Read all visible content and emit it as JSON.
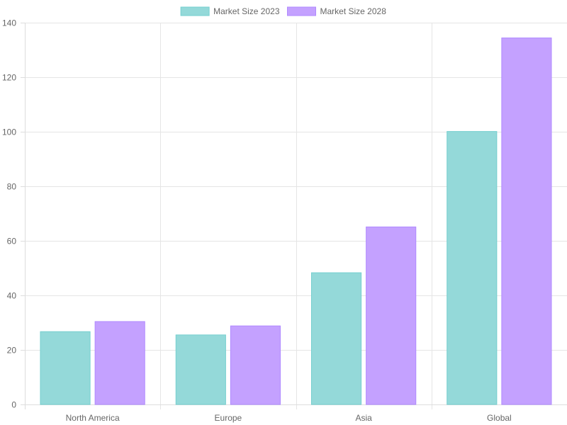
{
  "chart_data": {
    "type": "bar",
    "categories": [
      "North America",
      "Europe",
      "Asia",
      "Global"
    ],
    "series": [
      {
        "name": "Market Size 2023",
        "values": [
          26.7,
          25.5,
          48.3,
          100.1
        ],
        "color": "#94d9d9",
        "border": "#75cfcf"
      },
      {
        "name": "Market Size 2028",
        "values": [
          30.4,
          28.8,
          65.1,
          134.4
        ],
        "color": "#c4a1ff",
        "border": "#b08aff"
      }
    ],
    "ylim": [
      0,
      140
    ],
    "yticks": [
      0,
      20,
      40,
      60,
      80,
      100,
      120,
      140
    ],
    "grid": true,
    "legend_position": "top"
  }
}
